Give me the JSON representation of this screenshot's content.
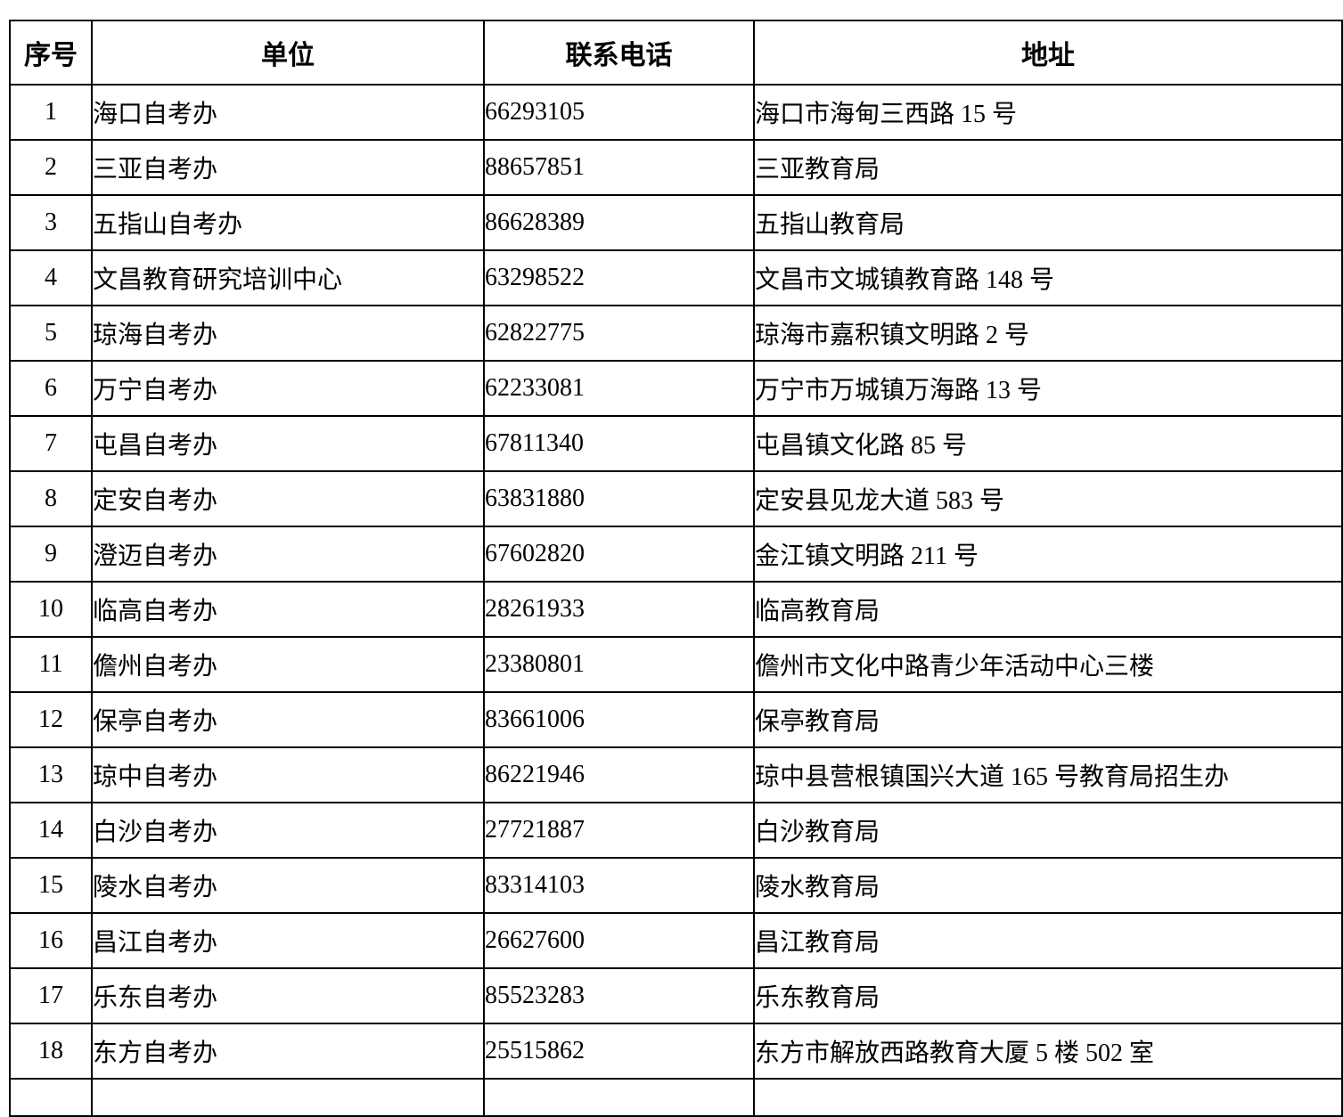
{
  "table": {
    "headers": [
      "序号",
      "单位",
      "联系电话",
      "地址"
    ],
    "rows": [
      {
        "no": "1",
        "unit": "海口自考办",
        "phone": "66293105",
        "address": "海口市海甸三西路 15 号"
      },
      {
        "no": "2",
        "unit": "三亚自考办",
        "phone": "88657851",
        "address": "三亚教育局"
      },
      {
        "no": "3",
        "unit": "五指山自考办",
        "phone": "86628389",
        "address": "五指山教育局"
      },
      {
        "no": "4",
        "unit": "文昌教育研究培训中心",
        "phone": "63298522",
        "address": "文昌市文城镇教育路 148 号"
      },
      {
        "no": "5",
        "unit": "琼海自考办",
        "phone": "62822775",
        "address": "琼海市嘉积镇文明路 2 号"
      },
      {
        "no": "6",
        "unit": "万宁自考办",
        "phone": "62233081",
        "address": "万宁市万城镇万海路 13 号"
      },
      {
        "no": "7",
        "unit": "屯昌自考办",
        "phone": "67811340",
        "address": "屯昌镇文化路 85 号"
      },
      {
        "no": "8",
        "unit": "定安自考办",
        "phone": "63831880",
        "address": "定安县见龙大道 583 号"
      },
      {
        "no": "9",
        "unit": "澄迈自考办",
        "phone": "67602820",
        "address": "金江镇文明路 211 号"
      },
      {
        "no": "10",
        "unit": "临高自考办",
        "phone": "28261933",
        "address": "临高教育局"
      },
      {
        "no": "11",
        "unit": "儋州自考办",
        "phone": "23380801",
        "address": "儋州市文化中路青少年活动中心三楼"
      },
      {
        "no": "12",
        "unit": "保亭自考办",
        "phone": "83661006",
        "address": "保亭教育局"
      },
      {
        "no": "13",
        "unit": "琼中自考办",
        "phone": "86221946",
        "address": "琼中县营根镇国兴大道 165 号教育局招生办"
      },
      {
        "no": "14",
        "unit": "白沙自考办",
        "phone": "27721887",
        "address": "白沙教育局"
      },
      {
        "no": "15",
        "unit": "陵水自考办",
        "phone": "83314103",
        "address": "陵水教育局"
      },
      {
        "no": "16",
        "unit": "昌江自考办",
        "phone": "26627600",
        "address": "昌江教育局"
      },
      {
        "no": "17",
        "unit": "乐东自考办",
        "phone": "85523283",
        "address": "乐东教育局"
      },
      {
        "no": "18",
        "unit": "东方自考办",
        "phone": "25515862",
        "address": "东方市解放西路教育大厦 5 楼 502 室"
      }
    ]
  }
}
